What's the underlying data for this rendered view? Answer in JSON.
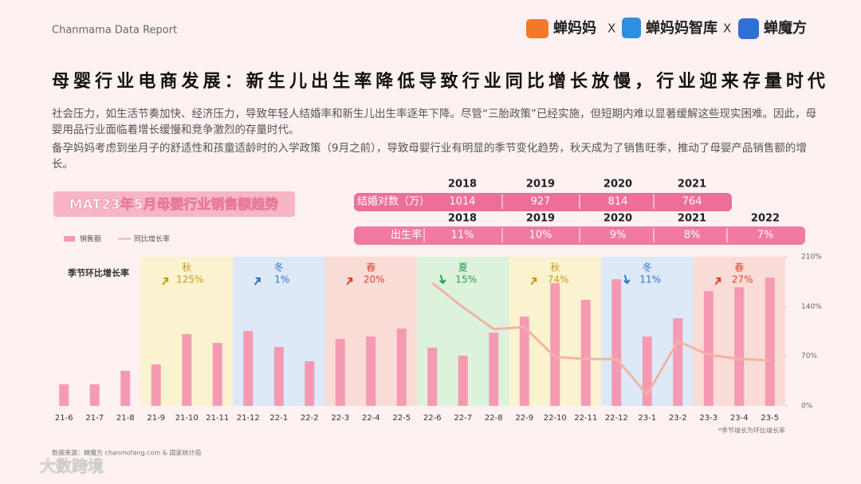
{
  "header": {
    "report": "Chanmama Data Report",
    "logos": [
      "蝉妈妈",
      "X",
      "蝉妈妈智库",
      "X",
      "蝉魔方"
    ]
  },
  "title": "母婴行业电商发展：新生儿出生率降低导致行业同比增长放慢，行业迎来存量时代",
  "paragraphs": [
    "社会压力，如生活节奏加快、经济压力，导致年轻人结婚率和新生儿出生率逐年下降。尽管“三胎政策”已经实施，但短期内难以显著缓解这些现实困难。因此，母婴用品行业面临着增长缓慢和竞争激烈的存量时代。",
    "备孕妈妈考虑到坐月子的舒适性和孩童适龄时的入学政策（9月之前），导致母婴行业有明显的季节变化趋势，秋天成为了销售旺季，推动了母婴产品销售额的增长。"
  ],
  "tables": [
    {
      "label": "结婚对数（万）",
      "years": [
        "2018",
        "2019",
        "2020",
        "2021"
      ],
      "values": [
        1014,
        927,
        814,
        764
      ]
    },
    {
      "label": "出生率",
      "years": [
        "2018",
        "2019",
        "2020",
        "2021",
        "2022"
      ],
      "values": [
        11,
        10,
        9,
        8,
        7
      ],
      "value_labels": [
        "11%",
        "10%",
        "9%",
        "8%",
        "7%"
      ]
    }
  ],
  "chart_data": {
    "type": "bar-line",
    "title": "MAT23年5月母婴行业销售额趋势",
    "subtitle": "季节环比增长率",
    "categories": [
      "21-6",
      "21-7",
      "21-8",
      "21-9",
      "21-10",
      "21-11",
      "21-12",
      "22-1",
      "22-2",
      "22-3",
      "22-4",
      "22-5",
      "22-6",
      "22-7",
      "22-8",
      "22-9",
      "22-10",
      "22-11",
      "22-12",
      "23-1",
      "23-2",
      "23-3",
      "23-4",
      "23-5"
    ],
    "series": [
      {
        "name": "销售额",
        "type": "bar",
        "color": "#f59ab2",
        "values": [
          27,
          27,
          44,
          52,
          90,
          79,
          94,
          74,
          56,
          84,
          87,
          97,
          73,
          63,
          92,
          112,
          154,
          133,
          159,
          87,
          110,
          144,
          149,
          161
        ]
      },
      {
        "name": "同比增长率",
        "type": "line",
        "axis": "y2",
        "color": "#f2b3a6",
        "values": [
          null,
          null,
          null,
          null,
          null,
          null,
          null,
          null,
          null,
          null,
          null,
          null,
          173,
          139,
          108,
          111,
          69,
          66,
          66,
          16,
          91,
          72,
          66,
          64
        ]
      }
    ],
    "y2lim": [
      0,
      210
    ],
    "y2ticks": [
      {
        "value": 0,
        "label": "0%"
      },
      {
        "value": 70,
        "label": "70%"
      },
      {
        "value": 140,
        "label": "140%"
      },
      {
        "value": 210,
        "label": "210%"
      }
    ],
    "seasons": [
      {
        "name": "秋",
        "change": "125%",
        "trend": "up",
        "color": "#fbf3cf",
        "label_color": "#c99a1a"
      },
      {
        "name": "冬",
        "change": "1%",
        "trend": "up",
        "color": "#dde9f7",
        "label_color": "#2f73c9"
      },
      {
        "name": "春",
        "change": "20%",
        "trend": "up",
        "color": "#fadcd6",
        "label_color": "#d9452f"
      },
      {
        "name": "夏",
        "change": "15%",
        "trend": "down",
        "color": "#dcf2dd",
        "label_color": "#2b9a46"
      },
      {
        "name": "秋",
        "change": "74%",
        "trend": "up",
        "color": "#fbf3cf",
        "label_color": "#c99a1a"
      },
      {
        "name": "冬",
        "change": "11%",
        "trend": "down",
        "color": "#dde9f7",
        "label_color": "#2f73c9"
      },
      {
        "name": "春",
        "change": "27%",
        "trend": "up",
        "color": "#fadcd6",
        "label_color": "#d9452f"
      }
    ],
    "note": "*季节增长为环比增长率"
  },
  "source": "数据来源：蝉魔方 chanmofang.com & 国家统计局",
  "watermark": "大数跨境"
}
